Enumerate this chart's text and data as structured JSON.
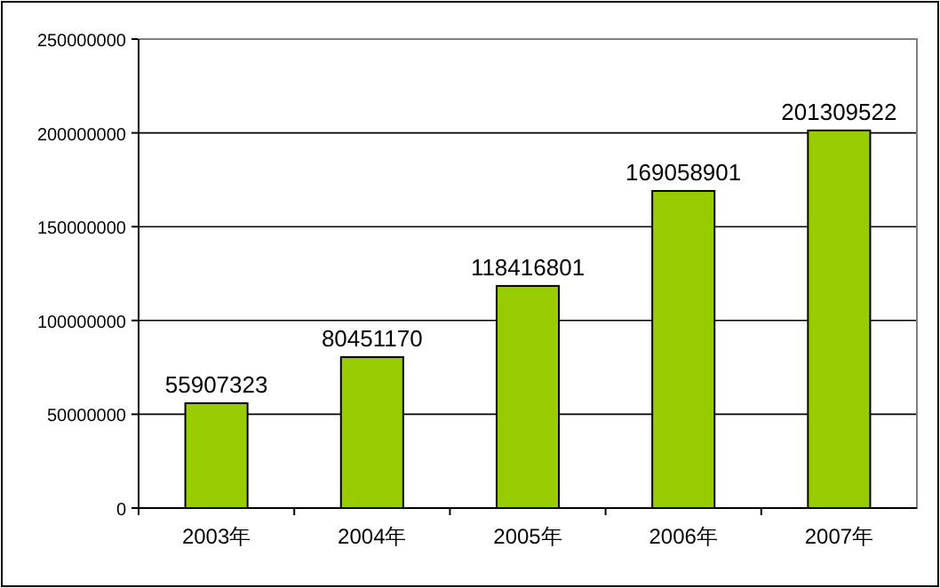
{
  "chart_data": {
    "type": "bar",
    "categories": [
      "2003年",
      "2004年",
      "2005年",
      "2006年",
      "2007年"
    ],
    "values": [
      55907323,
      80451170,
      118416801,
      169058901,
      201309522
    ],
    "color": "#99cc00",
    "ylim": [
      0,
      250000000
    ],
    "yticks": [
      0,
      50000000,
      100000000,
      150000000,
      200000000,
      250000000
    ],
    "grid": "y",
    "data_labels": true
  }
}
